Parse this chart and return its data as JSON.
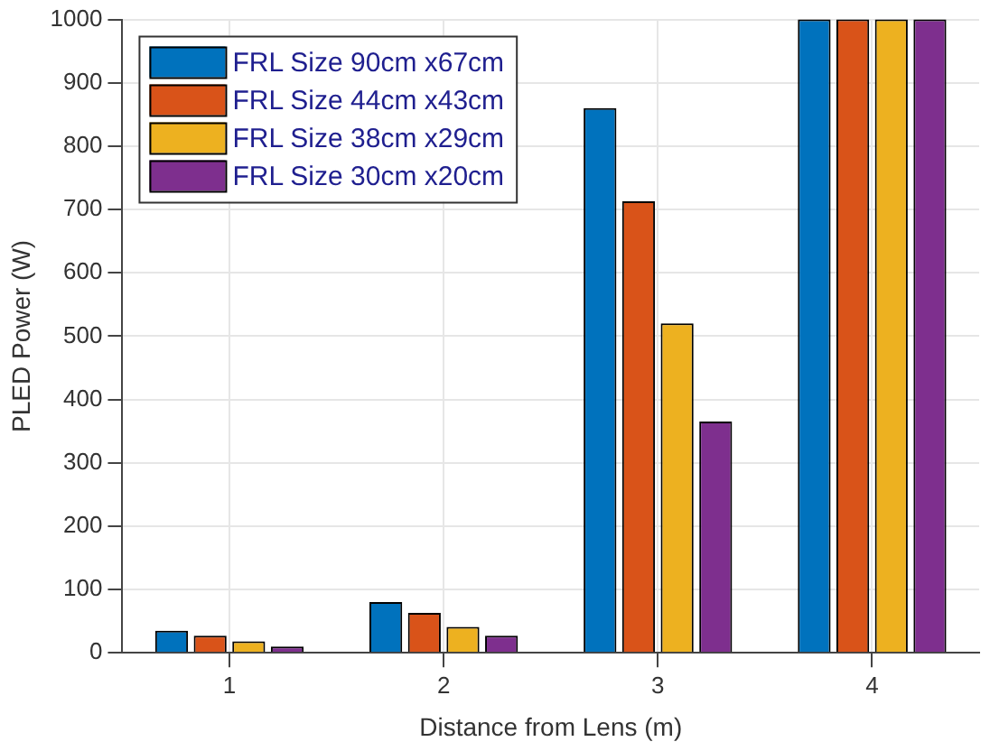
{
  "chart_data": {
    "type": "bar",
    "xlabel": "Distance from Lens (m)",
    "ylabel": "PLED Power (W)",
    "categories": [
      "1",
      "2",
      "3",
      "4"
    ],
    "series": [
      {
        "name": "FRL Size 90cm x67cm",
        "color": "#0072bd",
        "values": [
          35,
          80,
          860,
          1000
        ]
      },
      {
        "name": "FRL Size 44cm x43cm",
        "color": "#d95319",
        "values": [
          27,
          63,
          713,
          1000
        ]
      },
      {
        "name": "FRL Size 38cm x29cm",
        "color": "#edb120",
        "values": [
          18,
          41,
          520,
          1000
        ]
      },
      {
        "name": "FRL Size 30cm x20cm",
        "color": "#7e2f8e",
        "values": [
          10,
          27,
          365,
          1000
        ]
      }
    ],
    "ylim": [
      0,
      1000
    ],
    "yticks": [
      0,
      100,
      200,
      300,
      400,
      500,
      600,
      700,
      800,
      900,
      1000
    ],
    "grid": true,
    "legend": "top left"
  }
}
